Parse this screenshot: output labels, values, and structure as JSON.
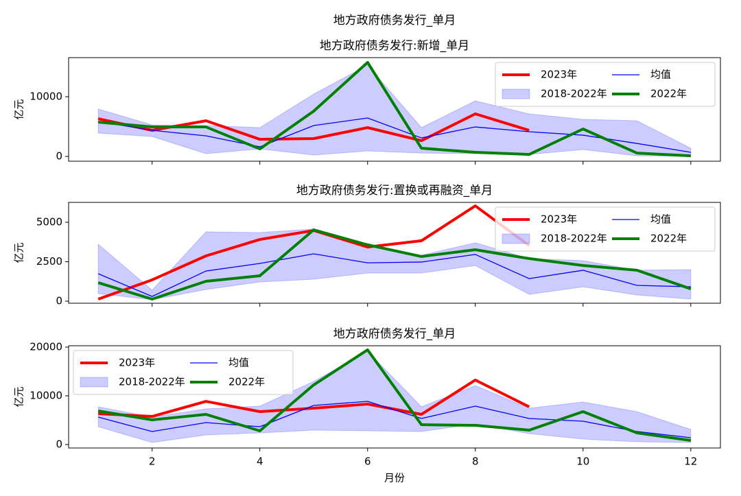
{
  "title": "地方政府债务发行_单月",
  "chart_data": [
    {
      "type": "line",
      "title": "地方政府债务发行:新增_单月",
      "ylabel": "亿元",
      "legend": "upper right",
      "grid": false,
      "show_xticklabels": false,
      "x": [
        1,
        2,
        3,
        4,
        5,
        6,
        7,
        8,
        9,
        10,
        11,
        12
      ],
      "xlim": [
        0.45,
        12.55
      ],
      "xticks": [
        2,
        4,
        6,
        8,
        10,
        12
      ],
      "ylim": [
        -800,
        16550
      ],
      "yticks": [
        0,
        10000
      ],
      "series": [
        {
          "name": "2023年",
          "color": "#ff0000",
          "values": [
            6320,
            4370,
            5980,
            2870,
            2990,
            4830,
            2640,
            7130,
            4370,
            null,
            null,
            null
          ]
        },
        {
          "name": "2018-2022年",
          "color": "#0000ff",
          "upper": [
            7930,
            5290,
            5170,
            4830,
            10460,
            15290,
            4830,
            9310,
            7130,
            6210,
            5980,
            1380
          ],
          "lower": [
            3910,
            3330,
            460,
            1260,
            230,
            920,
            570,
            460,
            340,
            1150,
            110,
            0
          ]
        },
        {
          "name": "均值",
          "color": "#0000ff",
          "values": [
            5860,
            4370,
            3450,
            1610,
            5170,
            6440,
            3100,
            4940,
            4140,
            3560,
            2180,
            690
          ]
        },
        {
          "name": "2022年",
          "color": "#008000",
          "values": [
            5750,
            4940,
            4940,
            1260,
            7590,
            15750,
            1380,
            690,
            340,
            4600,
            570,
            110
          ]
        }
      ]
    },
    {
      "type": "line",
      "title": "地方政府债务发行:置换或再融资_单月",
      "ylabel": "亿元",
      "legend": "upper right",
      "grid": false,
      "show_xticklabels": false,
      "x": [
        1,
        2,
        3,
        4,
        5,
        6,
        7,
        8,
        9,
        10,
        11,
        12
      ],
      "xlim": [
        0.45,
        12.55
      ],
      "xticks": [
        2,
        4,
        6,
        8,
        10,
        12
      ],
      "ylim": [
        -130,
        6260
      ],
      "yticks": [
        0,
        2500,
        5000
      ],
      "series": [
        {
          "name": "2023年",
          "color": "#ff0000",
          "values": [
            130,
            1350,
            2870,
            3910,
            4480,
            3430,
            3830,
            6040,
            3520,
            null,
            null,
            null
          ]
        },
        {
          "name": "2018-2022年",
          "color": "#0000ff",
          "upper": [
            3610,
            700,
            4390,
            4350,
            4570,
            3570,
            2910,
            3700,
            2700,
            2570,
            1960,
            2000
          ],
          "lower": [
            480,
            90,
            740,
            1220,
            1390,
            1780,
            1780,
            2260,
            430,
            910,
            390,
            130
          ]
        },
        {
          "name": "均值",
          "color": "#0000ff",
          "values": [
            1740,
            300,
            1910,
            2390,
            3000,
            2430,
            2480,
            2960,
            1430,
            1960,
            1000,
            910
          ]
        },
        {
          "name": "2022年",
          "color": "#008000",
          "values": [
            1170,
            130,
            1260,
            1610,
            4520,
            3570,
            2830,
            3260,
            2700,
            2260,
            1960,
            780
          ]
        }
      ]
    },
    {
      "type": "line",
      "title": "地方政府债务发行_单月",
      "ylabel": "亿元",
      "xlabel": "月份",
      "legend": "upper left",
      "grid": false,
      "show_xticklabels": true,
      "x": [
        1,
        2,
        3,
        4,
        5,
        6,
        7,
        8,
        9,
        10,
        11,
        12
      ],
      "xlim": [
        0.45,
        12.55
      ],
      "xticks": [
        2,
        4,
        6,
        8,
        10,
        12
      ],
      "ylim": [
        -700,
        20280
      ],
      "yticks": [
        0,
        10000,
        20000
      ],
      "series": [
        {
          "name": "2023年",
          "color": "#ff0000",
          "values": [
            6340,
            5770,
            8870,
            6760,
            7460,
            8310,
            6200,
            13240,
            7750,
            null,
            null,
            null
          ]
        },
        {
          "name": "2018-2022年",
          "color": "#0000ff",
          "upper": [
            7750,
            5630,
            7320,
            7890,
            12960,
            19150,
            7750,
            12110,
            7460,
            8730,
            6760,
            3100
          ],
          "lower": [
            3660,
            420,
            1970,
            2390,
            2960,
            2820,
            2680,
            4230,
            2250,
            1130,
            560,
            420
          ]
        },
        {
          "name": "均值",
          "color": "#0000ff",
          "values": [
            5630,
            2680,
            4510,
            3660,
            8030,
            8870,
            5350,
            7890,
            5350,
            4790,
            2680,
            1410
          ]
        },
        {
          "name": "2022年",
          "color": "#008000",
          "values": [
            6900,
            5070,
            6200,
            2820,
            12250,
            19440,
            4080,
            3940,
            2960,
            6760,
            2390,
            850
          ]
        }
      ]
    }
  ]
}
